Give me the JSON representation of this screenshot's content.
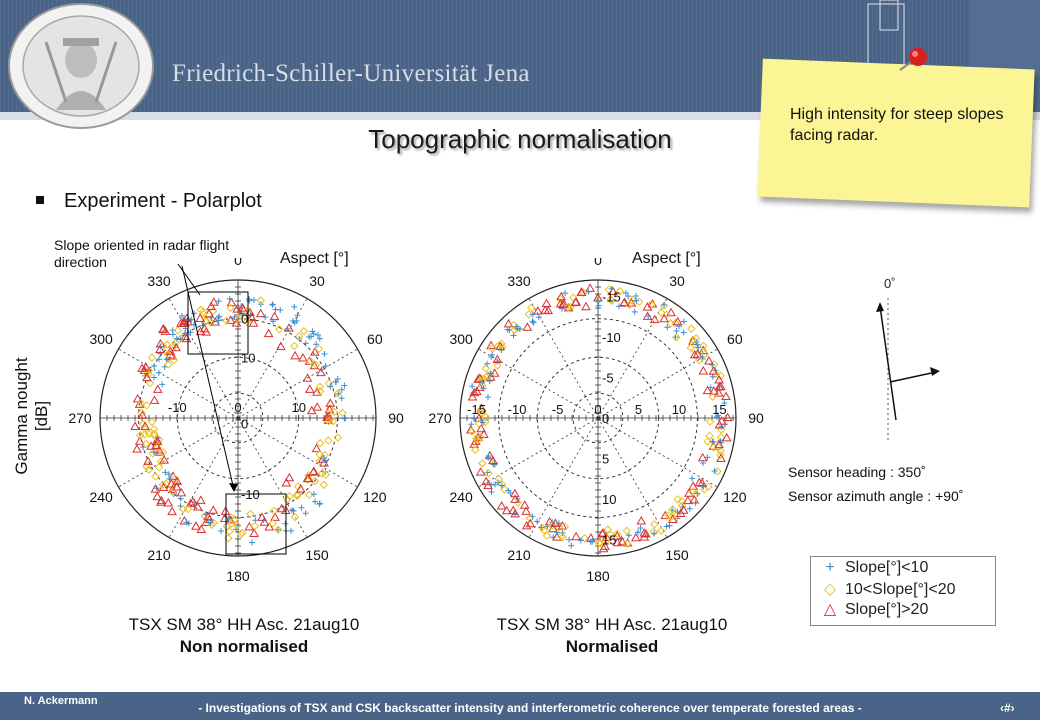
{
  "header": {
    "university": "Friedrich-Schiller-Universität Jena",
    "seal_text": "SIGILLVM ACADEMIAE IENENSIS"
  },
  "slide": {
    "title": "Topographic normalisation",
    "bullet": "Experiment - Polarplot"
  },
  "note": {
    "text": "High intensity for steep slopes facing radar."
  },
  "annotation": {
    "slope_text": "Slope oriented in radar flight direction"
  },
  "plots": [
    {
      "aspect_label": "Aspect [°]",
      "caption_line1": "TSX SM 38° HH Asc. 21aug10",
      "caption_line2": "Non normalised",
      "radial_ticks": [
        "-10",
        "0",
        "10"
      ],
      "inner_ticks": [
        "0",
        "10",
        "0",
        "-10"
      ]
    },
    {
      "aspect_label": "Aspect [°]",
      "caption_line1": "TSX SM 38° HH Asc. 21aug10",
      "caption_line2": "Normalised",
      "radial_ticks": [
        "-15",
        "-10",
        "-5",
        "0",
        "5",
        "10",
        "15"
      ],
      "inner_ticks": [
        "15",
        "10",
        "5",
        "0",
        "-5",
        "-10",
        "-15"
      ]
    }
  ],
  "ylabel": "Gamma nought [dB]",
  "angle_labels": [
    "0",
    "30",
    "60",
    "90",
    "120",
    "150",
    "180",
    "210",
    "240",
    "270",
    "300",
    "330"
  ],
  "sensor": {
    "zero_label": "0˚",
    "heading": "Sensor heading : 350˚",
    "azimuth": "Sensor azimuth angle : +90˚"
  },
  "legend": {
    "items": [
      {
        "symbol": "+",
        "label": "Slope[°]<10",
        "color": "#3a8fd6"
      },
      {
        "symbol": "◇",
        "label": "10<Slope[°]<20",
        "color": "#e8c020"
      },
      {
        "symbol": "△",
        "label": "Slope[°]>20",
        "color": "#d93030"
      }
    ]
  },
  "footer": {
    "author": "N. Ackermann",
    "text": "- Investigations of TSX and CSK backscatter intensity and interferometric coherence over temperate forested areas -",
    "page": "‹#›"
  },
  "colors": {
    "header": "#4a6488",
    "note": "#fbf595",
    "blue": "#3a8fd6",
    "yellow": "#e8c020",
    "red": "#d93030"
  }
}
